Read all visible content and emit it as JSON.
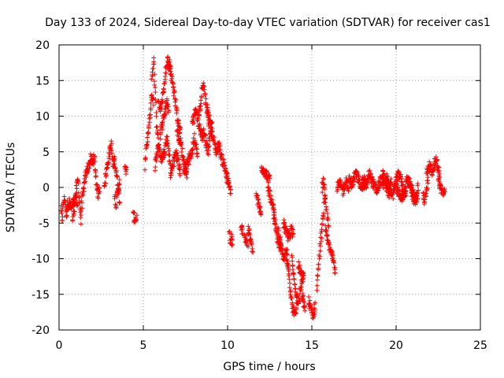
{
  "chart_data": {
    "type": "scatter",
    "title": "Day 133 of 2024, Sidereal Day-to-day VTEC variation (SDTVAR) for receiver cas1",
    "xlabel": "GPS time / hours",
    "ylabel": "SDTVAR / TECUs",
    "xlim": [
      0,
      25
    ],
    "ylim": [
      -20,
      20
    ],
    "xticks": [
      "0",
      "5",
      "10",
      "15",
      "20",
      "25"
    ],
    "yticks": [
      "-20",
      "-15",
      "-10",
      "-5",
      "0",
      "5",
      "10",
      "15",
      "20"
    ],
    "grid": true,
    "marker": "+",
    "series_color": "#ff0000",
    "segments": [
      {
        "x0": 0.1,
        "x1": 0.5,
        "y": [
          -3,
          -4.5,
          -2,
          -1.5,
          -4,
          -2.5
        ]
      },
      {
        "x0": 0.5,
        "x1": 1.1,
        "y": [
          -2.5,
          -2,
          -3,
          -2.5,
          -2,
          -1.5,
          -2.5
        ]
      },
      {
        "x0": 0.8,
        "x1": 1.3,
        "y": [
          -4.5,
          -3.5,
          -1.5,
          0,
          1,
          -2,
          -5
        ]
      },
      {
        "x0": 1.3,
        "x1": 2.0,
        "y": [
          -3,
          -1,
          1,
          2.5,
          3,
          4,
          3.5
        ]
      },
      {
        "x0": 2.0,
        "x1": 2.4,
        "y": [
          3.8,
          4,
          1,
          -1,
          0
        ]
      },
      {
        "x0": 2.7,
        "x1": 3.2,
        "y": [
          0.5,
          2,
          3.5,
          5,
          6,
          3
        ]
      },
      {
        "x0": 3.2,
        "x1": 3.6,
        "y": [
          3,
          4,
          2,
          0,
          -2
        ]
      },
      {
        "x0": 3.3,
        "x1": 3.6,
        "y": [
          -1,
          -2.5,
          0,
          1
        ]
      },
      {
        "x0": 3.9,
        "x1": 4.0,
        "y": [
          2.5,
          2.3
        ]
      },
      {
        "x0": 4.4,
        "x1": 4.6,
        "y": [
          -4,
          -4.5,
          -4.2
        ]
      },
      {
        "x0": 5.1,
        "x1": 5.6,
        "y": [
          3,
          6,
          8,
          10,
          13,
          12
        ]
      },
      {
        "x0": 5.5,
        "x1": 5.9,
        "y": [
          15,
          18,
          14,
          8,
          6
        ]
      },
      {
        "x0": 5.7,
        "x1": 6.6,
        "y": [
          3,
          6,
          4,
          5,
          7,
          3
        ]
      },
      {
        "x0": 5.9,
        "x1": 6.6,
        "y": [
          12,
          11,
          13,
          16,
          18,
          17
        ]
      },
      {
        "x0": 6.0,
        "x1": 6.5,
        "y": [
          7,
          9,
          10,
          12,
          11
        ]
      },
      {
        "x0": 6.5,
        "x1": 7.2,
        "y": [
          17,
          16,
          14,
          12,
          9,
          8
        ]
      },
      {
        "x0": 6.6,
        "x1": 7.2,
        "y": [
          2,
          3,
          5,
          4,
          2
        ]
      },
      {
        "x0": 7.0,
        "x1": 7.6,
        "y": [
          8,
          7,
          6,
          4,
          3,
          2
        ]
      },
      {
        "x0": 7.4,
        "x1": 8.2,
        "y": [
          2,
          3,
          4,
          5,
          7,
          5
        ]
      },
      {
        "x0": 7.9,
        "x1": 8.5,
        "y": [
          9,
          10,
          11,
          9,
          8,
          7
        ]
      },
      {
        "x0": 8.3,
        "x1": 8.9,
        "y": [
          10,
          12,
          15,
          13,
          11,
          9
        ]
      },
      {
        "x0": 8.5,
        "x1": 9.1,
        "y": [
          7,
          8,
          6,
          5,
          8,
          9
        ]
      },
      {
        "x0": 8.8,
        "x1": 10.0,
        "y": [
          11,
          9,
          7,
          5,
          6,
          4,
          3,
          1
        ]
      },
      {
        "x0": 9.9,
        "x1": 10.2,
        "y": [
          2,
          1,
          0,
          -0.5
        ]
      },
      {
        "x0": 10.1,
        "x1": 10.3,
        "y": [
          -6,
          -8,
          -7,
          -8.5
        ]
      },
      {
        "x0": 10.8,
        "x1": 10.9,
        "y": [
          -6,
          -5.8
        ]
      },
      {
        "x0": 11.0,
        "x1": 11.2,
        "y": [
          -6.5,
          -7.5,
          -8
        ]
      },
      {
        "x0": 11.2,
        "x1": 11.5,
        "y": [
          -6,
          -6.5,
          -8,
          -9
        ]
      },
      {
        "x0": 11.7,
        "x1": 12.0,
        "y": [
          -1,
          -2,
          -3,
          -4
        ]
      },
      {
        "x0": 12.0,
        "x1": 12.5,
        "y": [
          3,
          2.5,
          2,
          1.5,
          1
        ]
      },
      {
        "x0": 12.4,
        "x1": 12.8,
        "y": [
          0,
          -1,
          -2,
          -3,
          -5
        ]
      },
      {
        "x0": 12.7,
        "x1": 13.2,
        "y": [
          -3,
          -5,
          -7,
          -8,
          -9
        ]
      },
      {
        "x0": 13.0,
        "x1": 13.6,
        "y": [
          -6,
          -8,
          -10,
          -9,
          -11
        ]
      },
      {
        "x0": 13.3,
        "x1": 13.9,
        "y": [
          -5,
          -6,
          -7,
          -6,
          -6.5
        ]
      },
      {
        "x0": 13.5,
        "x1": 14.1,
        "y": [
          -9,
          -12,
          -15,
          -17,
          -18,
          -16
        ]
      },
      {
        "x0": 13.8,
        "x1": 14.5,
        "y": [
          -10,
          -13,
          -15,
          -16,
          -14,
          -12
        ]
      },
      {
        "x0": 14.2,
        "x1": 14.5,
        "y": [
          -11,
          -12,
          -13
        ]
      },
      {
        "x0": 14.4,
        "x1": 14.6,
        "y": [
          -15,
          -16,
          -17
        ]
      },
      {
        "x0": 14.8,
        "x1": 15.2,
        "y": [
          -16,
          -17,
          -18,
          -16.5
        ]
      },
      {
        "x0": 15.3,
        "x1": 15.8,
        "y": [
          -14,
          -11,
          -8,
          -6,
          -3,
          -1
        ]
      },
      {
        "x0": 15.6,
        "x1": 16.0,
        "y": [
          0,
          1,
          -2,
          -4,
          -5
        ]
      },
      {
        "x0": 15.8,
        "x1": 16.4,
        "y": [
          -6,
          -8,
          -9,
          -12
        ]
      },
      {
        "x0": 16.5,
        "x1": 17.2,
        "y": [
          0,
          0.5,
          -0.5,
          1,
          0
        ]
      },
      {
        "x0": 17.2,
        "x1": 18.2,
        "y": [
          1,
          0.5,
          2,
          1,
          0,
          1.5
        ]
      },
      {
        "x0": 18.0,
        "x1": 19.5,
        "y": [
          1,
          0,
          2,
          0.5,
          -0.5,
          1,
          0.5,
          1.5
        ]
      },
      {
        "x0": 19.2,
        "x1": 19.7,
        "y": [
          2,
          1,
          0,
          -1,
          1
        ]
      },
      {
        "x0": 19.4,
        "x1": 20.6,
        "y": [
          1,
          0,
          -1,
          1,
          2,
          0,
          -1
        ]
      },
      {
        "x0": 20.0,
        "x1": 21.3,
        "y": [
          0,
          -1,
          -1.5,
          1,
          0,
          -2,
          -1
        ]
      },
      {
        "x0": 20.8,
        "x1": 21.3,
        "y": [
          1,
          0,
          -1,
          -2,
          0
        ]
      },
      {
        "x0": 21.6,
        "x1": 21.9,
        "y": [
          -1,
          -2,
          0,
          1
        ]
      },
      {
        "x0": 21.8,
        "x1": 22.1,
        "y": [
          2,
          3,
          2.5
        ]
      },
      {
        "x0": 22.1,
        "x1": 22.6,
        "y": [
          2,
          3,
          4,
          3,
          1
        ]
      },
      {
        "x0": 22.5,
        "x1": 22.9,
        "y": [
          1,
          0,
          -1,
          -0.5
        ]
      }
    ]
  }
}
